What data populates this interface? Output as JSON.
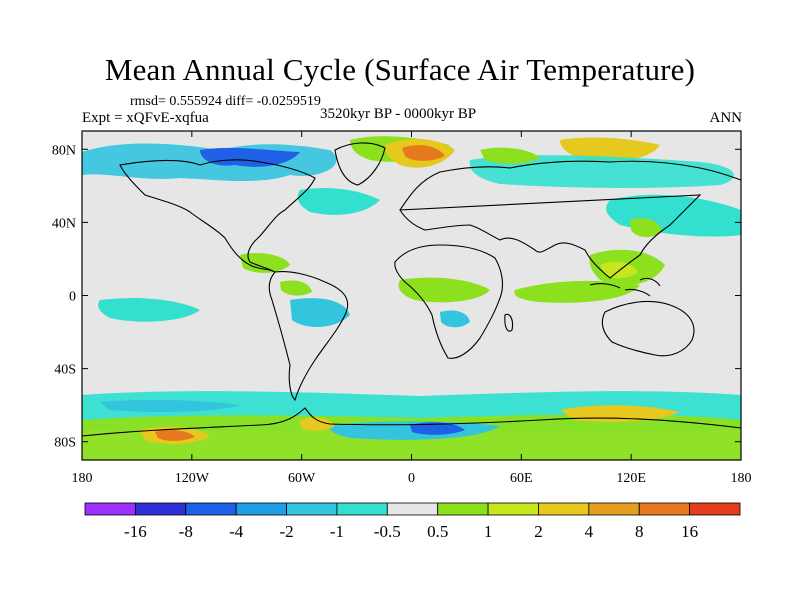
{
  "header": {
    "title": "Mean Annual Cycle (Surface Air Temperature)",
    "stats": "rmsd= 0.555924 diff= -0.0259519",
    "experiment": "Expt = xQFvE-xqfua",
    "period": "3520kyr BP - 0000kyr BP",
    "season": "ANN"
  },
  "axes": {
    "lat_ticks": [
      {
        "value": 80,
        "label": "80N"
      },
      {
        "value": 40,
        "label": "40N"
      },
      {
        "value": 0,
        "label": "0"
      },
      {
        "value": -40,
        "label": "40S"
      },
      {
        "value": -80,
        "label": "80S"
      }
    ],
    "lon_ticks": [
      {
        "value": -180,
        "label": "180"
      },
      {
        "value": -120,
        "label": "120W"
      },
      {
        "value": -60,
        "label": "60W"
      },
      {
        "value": 0,
        "label": "0"
      },
      {
        "value": 60,
        "label": "60E"
      },
      {
        "value": 120,
        "label": "120E"
      },
      {
        "value": 180,
        "label": "180"
      }
    ],
    "lon_range": [
      -180,
      180
    ],
    "lat_range": [
      -90,
      90
    ]
  },
  "colorbar": {
    "colors": [
      "#9b30ff",
      "#3030d8",
      "#1e60e6",
      "#1e9fe6",
      "#33c4de",
      "#33e0d0",
      "#e6e6e6",
      "#8ce01e",
      "#c8e61e",
      "#e6c81e",
      "#e69e1e",
      "#e6781e",
      "#e63c1e"
    ],
    "labels": [
      "-16",
      "-8",
      "-4",
      "-2",
      "-1",
      "-0.5",
      "0.5",
      "1",
      "2",
      "4",
      "8",
      "16"
    ]
  },
  "legend_colors": {
    "ocean_background": "#e6e6e6",
    "coastline": "#000000"
  }
}
